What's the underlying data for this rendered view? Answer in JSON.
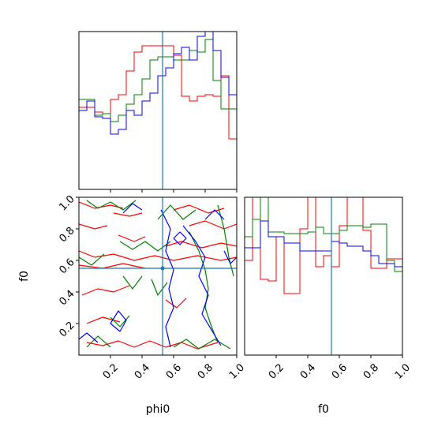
{
  "chart_data": [
    {
      "type": "histogram",
      "panel": "phi0-marginal",
      "xlim": [
        0,
        1
      ],
      "truth": 0.53,
      "bins": 20,
      "series": [
        {
          "color": "#ff0000",
          "values": [
            0.52,
            0.52,
            0.49,
            0.48,
            0.57,
            0.6,
            0.75,
            0.87,
            0.91,
            0.91,
            0.91,
            0.91,
            0.85,
            0.59,
            0.56,
            0.59,
            0.6,
            0.59,
            0.72,
            0.32
          ]
        },
        {
          "color": "#008000",
          "values": [
            0.57,
            0.57,
            0.47,
            0.48,
            0.43,
            0.47,
            0.54,
            0.6,
            0.7,
            0.82,
            0.84,
            0.84,
            0.82,
            0.82,
            0.88,
            0.87,
            0.95,
            0.69,
            0.51,
            0.51
          ]
        },
        {
          "color": "#0000ff",
          "values": [
            0.5,
            0.56,
            0.46,
            0.45,
            0.35,
            0.38,
            0.5,
            0.47,
            0.56,
            0.61,
            0.72,
            0.77,
            0.86,
            0.9,
            0.82,
            0.97,
            1.03,
            0.88,
            0.71,
            0.6
          ]
        }
      ]
    },
    {
      "type": "contour",
      "panel": "phi0-f0-joint",
      "xlabel": "phi0",
      "ylabel": "f0",
      "xlim": [
        0,
        1
      ],
      "ylim": [
        0,
        1
      ],
      "truth": {
        "x": 0.53,
        "y": 0.55
      },
      "x_ticks": [
        "0.2",
        "0.4",
        "0.6",
        "0.8",
        "1.0"
      ],
      "y_ticks": [
        "0.2",
        "0.4",
        "0.6",
        "0.8",
        "1.0"
      ],
      "series": [
        {
          "color": "#ff0000",
          "paths": [
            [
              [
                0.0,
                0.97
              ],
              [
                0.1,
                0.93
              ],
              [
                0.2,
                0.95
              ],
              [
                0.28,
                0.93
              ]
            ],
            [
              [
                0.22,
                0.9
              ],
              [
                0.32,
                0.88
              ],
              [
                0.4,
                0.9
              ]
            ],
            [
              [
                0.0,
                0.83
              ],
              [
                0.1,
                0.8
              ],
              [
                0.18,
                0.82
              ]
            ],
            [
              [
                0.25,
                0.76
              ],
              [
                0.35,
                0.72
              ],
              [
                0.42,
                0.75
              ]
            ],
            [
              [
                0.0,
                0.66
              ],
              [
                0.1,
                0.62
              ],
              [
                0.22,
                0.64
              ],
              [
                0.35,
                0.6
              ],
              [
                0.48,
                0.63
              ],
              [
                0.6,
                0.6
              ],
              [
                0.75,
                0.63
              ],
              [
                0.9,
                0.6
              ],
              [
                1.0,
                0.62
              ]
            ],
            [
              [
                0.0,
                0.57
              ],
              [
                0.15,
                0.55
              ],
              [
                0.28,
                0.58
              ],
              [
                0.42,
                0.55
              ]
            ],
            [
              [
                0.55,
                0.69
              ],
              [
                0.65,
                0.72
              ],
              [
                0.78,
                0.68
              ],
              [
                0.9,
                0.71
              ],
              [
                1.0,
                0.69
              ]
            ],
            [
              [
                0.6,
                0.92
              ],
              [
                0.7,
                0.95
              ],
              [
                0.82,
                0.9
              ],
              [
                0.92,
                0.93
              ]
            ],
            [
              [
                0.7,
                0.82
              ],
              [
                0.8,
                0.85
              ],
              [
                0.92,
                0.8
              ],
              [
                1.0,
                0.83
              ]
            ],
            [
              [
                0.02,
                0.38
              ],
              [
                0.12,
                0.42
              ],
              [
                0.22,
                0.4
              ],
              [
                0.32,
                0.44
              ]
            ],
            [
              [
                0.05,
                0.2
              ],
              [
                0.15,
                0.24
              ],
              [
                0.26,
                0.21
              ]
            ],
            [
              [
                0.55,
                0.35
              ],
              [
                0.62,
                0.3
              ],
              [
                0.68,
                0.36
              ]
            ],
            [
              [
                0.05,
                0.08
              ],
              [
                0.15,
                0.06
              ],
              [
                0.25,
                0.09
              ],
              [
                0.35,
                0.05
              ],
              [
                0.45,
                0.09
              ],
              [
                0.55,
                0.05
              ],
              [
                0.65,
                0.08
              ],
              [
                0.75,
                0.04
              ],
              [
                0.88,
                0.08
              ]
            ]
          ]
        },
        {
          "color": "#008000",
          "paths": [
            [
              [
                0.0,
                0.62
              ],
              [
                0.08,
                0.57
              ],
              [
                0.16,
                0.64
              ]
            ],
            [
              [
                0.05,
                0.98
              ],
              [
                0.12,
                0.93
              ],
              [
                0.2,
                0.97
              ],
              [
                0.28,
                0.92
              ],
              [
                0.36,
                0.98
              ]
            ],
            [
              [
                0.26,
                0.72
              ],
              [
                0.34,
                0.67
              ],
              [
                0.42,
                0.72
              ],
              [
                0.5,
                0.66
              ],
              [
                0.58,
                0.72
              ]
            ],
            [
              [
                0.5,
                0.86
              ],
              [
                0.58,
                0.95
              ],
              [
                0.66,
                0.86
              ],
              [
                0.74,
                0.92
              ]
            ],
            [
              [
                0.7,
                0.78
              ],
              [
                0.76,
                0.66
              ],
              [
                0.8,
                0.54
              ],
              [
                0.82,
                0.42
              ],
              [
                0.8,
                0.3
              ],
              [
                0.84,
                0.18
              ],
              [
                0.88,
                0.08
              ]
            ],
            [
              [
                0.88,
                0.95
              ],
              [
                0.92,
                0.8
              ],
              [
                0.95,
                0.62
              ],
              [
                0.98,
                0.5
              ]
            ],
            [
              [
                0.05,
                0.05
              ],
              [
                0.12,
                0.12
              ],
              [
                0.2,
                0.05
              ]
            ],
            [
              [
                0.28,
                0.5
              ],
              [
                0.34,
                0.42
              ],
              [
                0.4,
                0.5
              ]
            ],
            [
              [
                0.2,
                0.24
              ],
              [
                0.26,
                0.18
              ],
              [
                0.32,
                0.25
              ]
            ],
            [
              [
                0.46,
                0.48
              ],
              [
                0.5,
                0.38
              ],
              [
                0.56,
                0.46
              ]
            ],
            [
              [
                0.6,
                0.05
              ],
              [
                0.68,
                0.1
              ],
              [
                0.76,
                0.04
              ],
              [
                0.86,
                0.1
              ],
              [
                0.96,
                0.04
              ]
            ]
          ]
        },
        {
          "color": "#0000ff",
          "paths": [
            [
              [
                0.52,
                0.92
              ],
              [
                0.58,
                0.8
              ],
              [
                0.55,
                0.66
              ],
              [
                0.6,
                0.54
              ],
              [
                0.57,
                0.42
              ],
              [
                0.6,
                0.3
              ],
              [
                0.55,
                0.18
              ],
              [
                0.58,
                0.05
              ]
            ],
            [
              [
                0.66,
                0.82
              ],
              [
                0.74,
                0.72
              ],
              [
                0.8,
                0.62
              ],
              [
                0.76,
                0.5
              ],
              [
                0.82,
                0.38
              ],
              [
                0.78,
                0.26
              ],
              [
                0.84,
                0.16
              ],
              [
                0.9,
                0.06
              ]
            ],
            [
              [
                0.2,
                0.2
              ],
              [
                0.25,
                0.28
              ],
              [
                0.3,
                0.22
              ],
              [
                0.26,
                0.15
              ],
              [
                0.2,
                0.2
              ]
            ],
            [
              [
                0.0,
                0.1
              ],
              [
                0.05,
                0.14
              ],
              [
                0.12,
                0.08
              ]
            ],
            [
              [
                0.28,
                0.9
              ],
              [
                0.34,
                0.96
              ],
              [
                0.4,
                0.92
              ]
            ],
            [
              [
                0.8,
                0.86
              ],
              [
                0.86,
                0.92
              ],
              [
                0.92,
                0.86
              ]
            ],
            [
              [
                0.92,
                0.66
              ],
              [
                0.96,
                0.58
              ],
              [
                1.0,
                0.62
              ]
            ],
            [
              [
                0.6,
                0.74
              ],
              [
                0.64,
                0.7
              ],
              [
                0.68,
                0.74
              ],
              [
                0.64,
                0.78
              ],
              [
                0.6,
                0.74
              ]
            ]
          ]
        }
      ]
    },
    {
      "type": "histogram",
      "panel": "f0-marginal",
      "xlabel": "f0",
      "xlim": [
        0,
        1
      ],
      "truth": 0.55,
      "bins": 20,
      "x_ticks": [
        "0.2",
        "0.4",
        "0.6",
        "0.8",
        "1.0"
      ],
      "series": [
        {
          "color": "#ff0000",
          "values": [
            0.6,
            1.03,
            0.48,
            0.47,
            0.75,
            0.39,
            0.39,
            0.8,
            1.03,
            0.56,
            0.63,
            0.56,
            0.82,
            1.03,
            1.03,
            0.79,
            0.55,
            0.55,
            0.61,
            0.61
          ]
        },
        {
          "color": "#008000",
          "values": [
            0.75,
            0.86,
            1.03,
            0.78,
            0.78,
            0.77,
            0.77,
            0.77,
            0.78,
            0.81,
            0.77,
            0.77,
            0.79,
            0.82,
            0.82,
            0.81,
            0.83,
            0.83,
            0.6,
            0.53
          ]
        },
        {
          "color": "#0000ff",
          "values": [
            0.68,
            0.68,
            0.85,
            0.75,
            0.75,
            0.71,
            0.71,
            0.66,
            0.66,
            0.66,
            0.66,
            0.72,
            0.71,
            0.69,
            0.69,
            0.66,
            0.63,
            0.58,
            0.58,
            0.56
          ]
        }
      ]
    }
  ]
}
